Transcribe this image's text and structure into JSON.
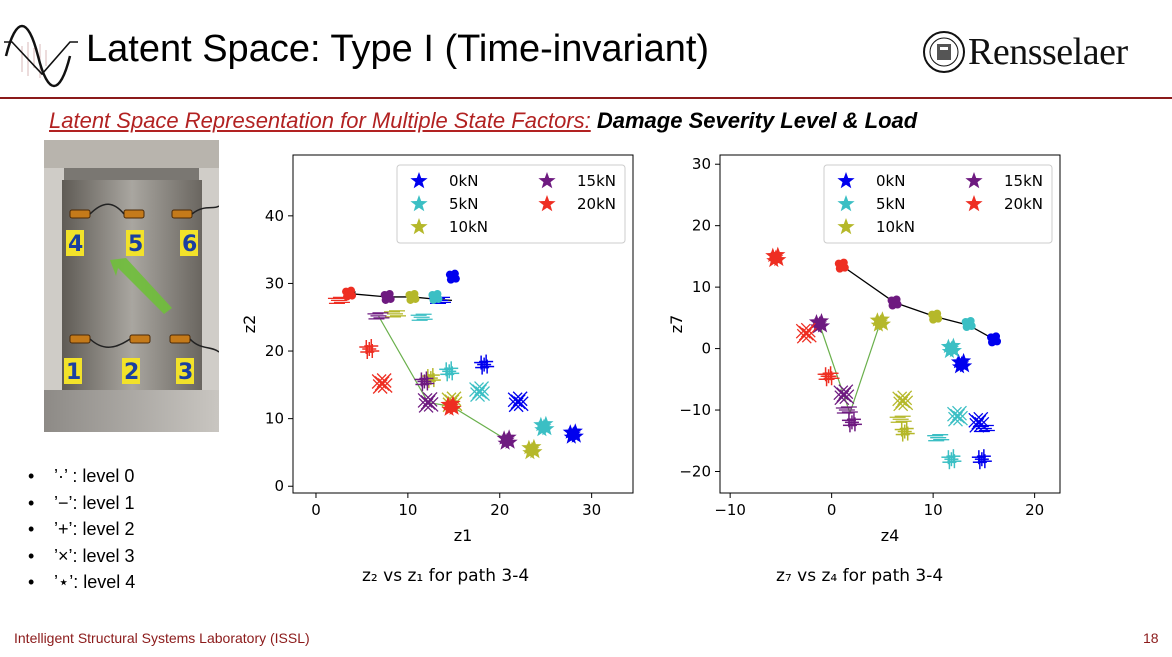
{
  "header": {
    "title": "Latent Space: Type I (Time-invariant)",
    "logo_text": "Rensselaer",
    "logo_icon": "seal-icon",
    "waveform_icon": "sine-wave-icon",
    "subtitle_red": "Latent Space Representation for Multiple State Factors:",
    "subtitle_bold": "Damage Severity Level & Load"
  },
  "photo": {
    "sensor_labels_top": [
      "4",
      "5",
      "6"
    ],
    "sensor_labels_bottom": [
      "1",
      "2",
      "3"
    ]
  },
  "legend_items": [
    {
      "label": "’·’ : level 0"
    },
    {
      "label": "’−’: level 1"
    },
    {
      "label": "’+’: level 2"
    },
    {
      "label": "’×’: level 3"
    },
    {
      "label": "’⋆’: level 4"
    }
  ],
  "footer": {
    "lab": "Intelligent Structural Systems Laboratory (ISSL)",
    "page": "18"
  },
  "colors": {
    "0kN": "#0000ee",
    "5kN": "#3bbfc4",
    "10kN": "#b5b82a",
    "15kN": "#6e1a80",
    "20kN": "#ee2e22",
    "accent": "#8b1a1a"
  },
  "chart_data": [
    {
      "type": "scatter",
      "title": "",
      "xlabel": "z1",
      "ylabel": "z2",
      "xlim": [
        -2.5,
        34.5
      ],
      "ylim": [
        -1,
        49
      ],
      "xticks": [
        0,
        10,
        20,
        30
      ],
      "yticks": [
        0,
        10,
        20,
        30,
        40
      ],
      "caption": "z₂ vs z₁ for path 3-4",
      "legend_position": "top-right",
      "legend": [
        "0kN",
        "5kN",
        "10kN",
        "15kN",
        "20kN"
      ],
      "groups": [
        {
          "load": "0kN",
          "level": 0,
          "x": 14.9,
          "y": 31
        },
        {
          "load": "0kN",
          "level": 1,
          "x": 13.5,
          "y": 27.5
        },
        {
          "load": "0kN",
          "level": 2,
          "x": 18.3,
          "y": 18
        },
        {
          "load": "0kN",
          "level": 3,
          "x": 22,
          "y": 12.5
        },
        {
          "load": "0kN",
          "level": 4,
          "x": 28,
          "y": 7.7
        },
        {
          "load": "5kN",
          "level": 0,
          "x": 13,
          "y": 28
        },
        {
          "load": "5kN",
          "level": 1,
          "x": 11.5,
          "y": 25
        },
        {
          "load": "5kN",
          "level": 2,
          "x": 14.5,
          "y": 17
        },
        {
          "load": "5kN",
          "level": 3,
          "x": 17.8,
          "y": 14
        },
        {
          "load": "5kN",
          "level": 4,
          "x": 24.8,
          "y": 8.8
        },
        {
          "load": "10kN",
          "level": 0,
          "x": 10.5,
          "y": 28
        },
        {
          "load": "10kN",
          "level": 1,
          "x": 8.6,
          "y": 25.5
        },
        {
          "load": "10kN",
          "level": 2,
          "x": 12.5,
          "y": 16
        },
        {
          "load": "10kN",
          "level": 3,
          "x": 14.8,
          "y": 12.5
        },
        {
          "load": "10kN",
          "level": 4,
          "x": 23.5,
          "y": 5.4
        },
        {
          "load": "15kN",
          "level": 0,
          "x": 7.8,
          "y": 28
        },
        {
          "load": "15kN",
          "level": 1,
          "x": 6.8,
          "y": 25.2
        },
        {
          "load": "15kN",
          "level": 2,
          "x": 11.8,
          "y": 15.5
        },
        {
          "load": "15kN",
          "level": 3,
          "x": 12.2,
          "y": 12.4
        },
        {
          "load": "15kN",
          "level": 4,
          "x": 20.8,
          "y": 6.8
        },
        {
          "load": "20kN",
          "level": 0,
          "x": 3.6,
          "y": 28.5
        },
        {
          "load": "20kN",
          "level": 1,
          "x": 2.5,
          "y": 27.5
        },
        {
          "load": "20kN",
          "level": 2,
          "x": 5.8,
          "y": 20.3
        },
        {
          "load": "20kN",
          "level": 3,
          "x": 7.2,
          "y": 15.2
        },
        {
          "load": "20kN",
          "level": 4,
          "x": 14.7,
          "y": 11.8
        }
      ],
      "black_path": [
        [
          14.8,
          27.5
        ],
        [
          13.5,
          27.6
        ],
        [
          10.5,
          28
        ],
        [
          7.8,
          28
        ],
        [
          3.6,
          28.5
        ]
      ],
      "green_path": [
        [
          6.8,
          25.2
        ],
        [
          12.2,
          12.4
        ],
        [
          14.8,
          11.8
        ],
        [
          20.8,
          6.8
        ]
      ]
    },
    {
      "type": "scatter",
      "title": "",
      "xlabel": "z4",
      "ylabel": "z7",
      "xlim": [
        -11,
        22.5
      ],
      "ylim": [
        -23.5,
        31.5
      ],
      "xticks": [
        -10,
        0,
        10,
        20
      ],
      "yticks": [
        -20,
        -10,
        0,
        10,
        20,
        30
      ],
      "caption": "z₇ vs z₄ for path 3-4",
      "legend_position": "top-right",
      "legend": [
        "0kN",
        "5kN",
        "10kN",
        "15kN",
        "20kN"
      ],
      "groups": [
        {
          "load": "0kN",
          "level": 0,
          "x": 16,
          "y": 1.5
        },
        {
          "load": "0kN",
          "level": 1,
          "x": 15,
          "y": -13
        },
        {
          "load": "0kN",
          "level": 2,
          "x": 14.8,
          "y": -18
        },
        {
          "load": "0kN",
          "level": 3,
          "x": 14.5,
          "y": -12
        },
        {
          "load": "0kN",
          "level": 4,
          "x": 12.8,
          "y": -2.5
        },
        {
          "load": "5kN",
          "level": 0,
          "x": 13.5,
          "y": 4
        },
        {
          "load": "5kN",
          "level": 1,
          "x": 10.5,
          "y": -14.5
        },
        {
          "load": "5kN",
          "level": 2,
          "x": 11.8,
          "y": -18
        },
        {
          "load": "5kN",
          "level": 3,
          "x": 12.4,
          "y": -11
        },
        {
          "load": "5kN",
          "level": 4,
          "x": 11.8,
          "y": 0
        },
        {
          "load": "10kN",
          "level": 0,
          "x": 10.2,
          "y": 5.2
        },
        {
          "load": "10kN",
          "level": 1,
          "x": 6.8,
          "y": -11.5
        },
        {
          "load": "10kN",
          "level": 2,
          "x": 7.2,
          "y": -13.5
        },
        {
          "load": "10kN",
          "level": 3,
          "x": 7.0,
          "y": -8.5
        },
        {
          "load": "10kN",
          "level": 4,
          "x": 4.8,
          "y": 4.3
        },
        {
          "load": "15kN",
          "level": 0,
          "x": 6.2,
          "y": 7.5
        },
        {
          "load": "15kN",
          "level": 1,
          "x": 1.5,
          "y": -10
        },
        {
          "load": "15kN",
          "level": 2,
          "x": 2.0,
          "y": -12
        },
        {
          "load": "15kN",
          "level": 3,
          "x": 1.2,
          "y": -7.5
        },
        {
          "load": "15kN",
          "level": 4,
          "x": -1.2,
          "y": 4
        },
        {
          "load": "20kN",
          "level": 0,
          "x": 1.0,
          "y": 13.5
        },
        {
          "load": "20kN",
          "level": 1,
          "x": -0.3,
          "y": -4.5
        },
        {
          "load": "20kN",
          "level": 2,
          "x": -0.3,
          "y": -4.5
        },
        {
          "load": "20kN",
          "level": 3,
          "x": -2.5,
          "y": 2.5
        },
        {
          "load": "20kN",
          "level": 4,
          "x": -5.5,
          "y": 14.8
        }
      ],
      "black_path": [
        [
          16,
          1.5
        ],
        [
          13.5,
          3.8
        ],
        [
          10.2,
          5.2
        ],
        [
          6.2,
          7.5
        ],
        [
          1.0,
          13.5
        ]
      ],
      "green_path": [
        [
          -1.2,
          4
        ],
        [
          1.8,
          -10.5
        ],
        [
          4.8,
          4.3
        ]
      ]
    }
  ]
}
